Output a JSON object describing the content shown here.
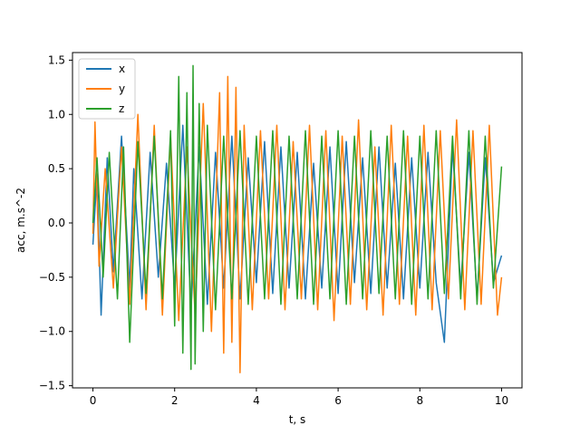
{
  "chart_data": {
    "type": "line",
    "title": "",
    "xlabel": "t, s",
    "ylabel": "acc, m.s^-2",
    "xlim": [
      -0.5,
      10.5
    ],
    "ylim": [
      -1.52,
      1.57
    ],
    "xticks": [
      0,
      2,
      4,
      6,
      8,
      10
    ],
    "xtick_labels": [
      "0",
      "2",
      "4",
      "6",
      "8",
      "10"
    ],
    "yticks": [
      -1.5,
      -1.0,
      -0.5,
      0.0,
      0.5,
      1.0,
      1.5
    ],
    "ytick_labels": [
      "−1.5",
      "−1.0",
      "−0.5",
      "0.0",
      "0.5",
      "1.0",
      "1.5"
    ],
    "grid": false,
    "legend": {
      "position": "upper-left",
      "entries": [
        "x",
        "y",
        "z"
      ]
    },
    "series": [
      {
        "name": "x",
        "color": "#1f77b4",
        "x": [
          0,
          0.1,
          0.2,
          0.35,
          0.5,
          0.7,
          0.9,
          1.0,
          1.2,
          1.4,
          1.6,
          1.8,
          2.0,
          2.2,
          2.4,
          2.6,
          2.8,
          3.0,
          3.2,
          3.4,
          3.6,
          3.8,
          4.0,
          4.2,
          4.4,
          4.6,
          4.8,
          5.0,
          5.2,
          5.4,
          5.6,
          5.8,
          6.0,
          6.2,
          6.4,
          6.6,
          6.8,
          7.0,
          7.2,
          7.4,
          7.6,
          7.8,
          8.0,
          8.2,
          8.4,
          8.6,
          8.8,
          9.0,
          9.2,
          9.4,
          9.6,
          9.8,
          10.0
        ],
        "y": [
          -0.2,
          0.45,
          -0.85,
          0.6,
          -0.45,
          0.8,
          -0.6,
          0.5,
          -0.7,
          0.65,
          -0.5,
          0.55,
          -0.6,
          0.9,
          -0.8,
          0.7,
          -0.75,
          0.65,
          -0.6,
          0.8,
          -0.7,
          0.6,
          -0.55,
          0.75,
          -0.65,
          0.7,
          -0.6,
          0.65,
          -0.7,
          0.55,
          -0.6,
          0.7,
          -0.65,
          0.75,
          -0.55,
          0.6,
          -0.65,
          0.7,
          -0.6,
          0.55,
          -0.7,
          0.6,
          -0.6,
          0.65,
          -0.55,
          -1.1,
          0.7,
          -0.6,
          0.65,
          -0.7,
          0.6,
          -0.55,
          -0.3
        ]
      },
      {
        "name": "y",
        "color": "#ff7f0e",
        "x": [
          0,
          0.05,
          0.15,
          0.3,
          0.5,
          0.7,
          0.9,
          1.1,
          1.3,
          1.5,
          1.7,
          1.9,
          2.1,
          2.3,
          2.5,
          2.7,
          2.9,
          3.1,
          3.2,
          3.3,
          3.4,
          3.5,
          3.6,
          3.7,
          3.9,
          4.1,
          4.3,
          4.5,
          4.7,
          4.9,
          5.1,
          5.3,
          5.5,
          5.7,
          5.9,
          6.1,
          6.3,
          6.5,
          6.7,
          6.9,
          7.1,
          7.3,
          7.5,
          7.7,
          7.9,
          8.1,
          8.3,
          8.5,
          8.7,
          8.9,
          9.1,
          9.3,
          9.5,
          9.7,
          9.9,
          10.0
        ],
        "y": [
          -0.1,
          0.93,
          -0.4,
          0.5,
          -0.6,
          0.7,
          -0.75,
          1.0,
          -0.8,
          0.9,
          -0.85,
          0.8,
          -0.9,
          0.7,
          -0.85,
          1.1,
          -1.0,
          1.2,
          -1.2,
          1.35,
          -1.1,
          1.25,
          -1.38,
          0.9,
          -0.8,
          0.85,
          -0.7,
          0.9,
          -0.8,
          0.75,
          -0.7,
          0.9,
          -0.8,
          0.85,
          -0.9,
          0.8,
          -0.75,
          0.95,
          -0.8,
          0.7,
          -0.85,
          0.9,
          -0.75,
          0.8,
          -0.85,
          0.9,
          -0.8,
          0.85,
          -0.7,
          0.95,
          -0.8,
          0.85,
          -0.75,
          0.9,
          -0.85,
          -0.5
        ]
      },
      {
        "name": "z",
        "color": "#2ca02c",
        "x": [
          0,
          0.1,
          0.25,
          0.4,
          0.6,
          0.75,
          0.9,
          1.1,
          1.3,
          1.5,
          1.7,
          1.9,
          2.0,
          2.1,
          2.2,
          2.3,
          2.4,
          2.45,
          2.5,
          2.6,
          2.7,
          2.8,
          3.0,
          3.2,
          3.4,
          3.6,
          3.8,
          4.0,
          4.2,
          4.4,
          4.6,
          4.8,
          5.0,
          5.2,
          5.4,
          5.6,
          5.8,
          6.0,
          6.2,
          6.4,
          6.6,
          6.8,
          7.0,
          7.2,
          7.4,
          7.6,
          7.8,
          8.0,
          8.2,
          8.4,
          8.6,
          8.8,
          9.0,
          9.2,
          9.4,
          9.6,
          9.8,
          10.0
        ],
        "y": [
          0.0,
          0.6,
          -0.5,
          0.65,
          -0.7,
          0.7,
          -1.1,
          0.75,
          -0.65,
          0.8,
          -0.7,
          0.85,
          -0.95,
          1.35,
          -1.2,
          1.2,
          -1.35,
          1.45,
          -1.3,
          1.1,
          -1.0,
          0.9,
          -0.8,
          0.8,
          -0.7,
          0.85,
          -0.75,
          0.8,
          -0.7,
          0.85,
          -0.75,
          0.8,
          -0.7,
          0.85,
          -0.75,
          0.8,
          -0.7,
          0.85,
          -0.75,
          0.8,
          -0.7,
          0.85,
          -0.65,
          0.8,
          -0.7,
          0.85,
          -0.75,
          0.8,
          -0.7,
          0.85,
          -0.65,
          0.8,
          -0.7,
          0.85,
          -0.75,
          0.8,
          -0.6,
          0.52
        ]
      }
    ]
  }
}
